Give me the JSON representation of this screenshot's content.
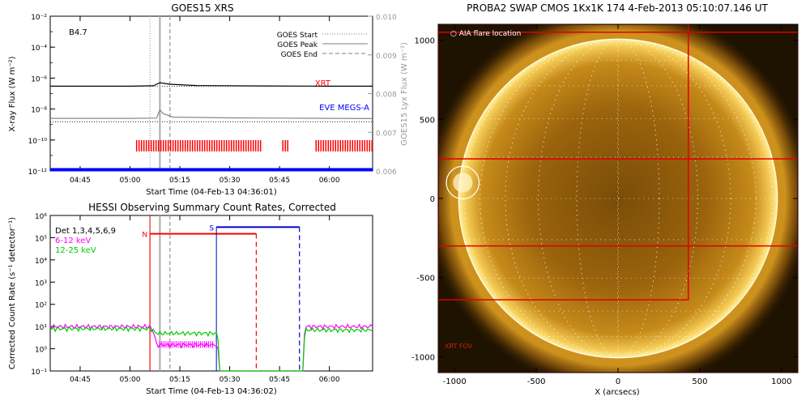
{
  "chart_data": [
    {
      "type": "line",
      "title": "GOES15 XRS",
      "xlabel": "Start Time (04-Feb-13 04:36:01)",
      "ylabel": "X-ray Flux (W m⁻²)",
      "ylabel_right": "GOES15 Lyx Flux (W m⁻²)",
      "y_scale": "log",
      "ylim": [
        1e-12,
        0.01
      ],
      "yticks": [
        "10⁻²",
        "10⁻⁴",
        "10⁻⁶",
        "10⁻⁸",
        "10⁻¹⁰",
        "10⁻¹²"
      ],
      "ylim_right": [
        0.006,
        0.01
      ],
      "yticks_right": [
        "0.010",
        "0.009",
        "0.008",
        "0.007",
        "0.006"
      ],
      "xlim": [
        "04:36",
        "06:13"
      ],
      "xticks": [
        "04:45",
        "05:00",
        "05:15",
        "05:30",
        "05:45",
        "06:00"
      ],
      "annotation": "B4.7",
      "legend": [
        {
          "name": "GOES Start",
          "style": "dotted",
          "color": "#aaaaaa"
        },
        {
          "name": "GOES Peak",
          "style": "solid",
          "color": "#aaaaaa"
        },
        {
          "name": "GOES End",
          "style": "dashed",
          "color": "#aaaaaa"
        }
      ],
      "labels": [
        {
          "text": "XRT",
          "color": "#ff0000"
        },
        {
          "text": "EVE MEGS-A",
          "color": "#0000ff"
        }
      ],
      "vlines": {
        "start": "05:06",
        "peak": "05:09",
        "end": "05:12"
      },
      "series": [
        {
          "color": "#000000",
          "x": [
            "04:36",
            "05:00",
            "05:07",
            "05:09",
            "05:12",
            "05:20",
            "05:40",
            "06:00",
            "06:13"
          ],
          "y": [
            3e-07,
            3e-07,
            3.2e-07,
            5e-07,
            4e-07,
            3.3e-07,
            3.1e-07,
            3e-07,
            3e-07
          ]
        },
        {
          "color": "#888888",
          "x": [
            "04:36",
            "05:00",
            "05:08",
            "05:09",
            "05:10",
            "05:13",
            "05:30",
            "05:45",
            "06:13"
          ],
          "y": [
            2.5e-09,
            2.5e-09,
            2.6e-09,
            9e-09,
            5e-09,
            3e-09,
            2.7e-09,
            2.6e-09,
            2.4e-09
          ]
        },
        {
          "color": "#0000ff",
          "x": [
            "04:36",
            "06:13"
          ],
          "y": [
            1.2e-12,
            1.2e-12
          ]
        }
      ],
      "xrt_coverage": [
        [
          "05:02",
          "05:40"
        ],
        [
          "05:46",
          "05:48"
        ],
        [
          "05:56",
          "06:13"
        ]
      ]
    },
    {
      "type": "line",
      "title": "HESSI Observing Summary Count Rates, Corrected",
      "xlabel": "Start Time (04-Feb-13 04:36:02)",
      "ylabel": "Corrected Count Rate (s⁻¹ detector⁻¹)",
      "y_scale": "log",
      "ylim": [
        0.1,
        1000000.0
      ],
      "yticks": [
        "10⁶",
        "10⁵",
        "10⁴",
        "10³",
        "10²",
        "10¹",
        "10⁰",
        "10⁻¹"
      ],
      "xlim": [
        "04:36",
        "06:13"
      ],
      "xticks": [
        "04:45",
        "05:00",
        "05:15",
        "05:30",
        "05:45",
        "06:00"
      ],
      "legend": [
        {
          "name": "Det 1,3,4,5,6,9",
          "color": "#000000"
        },
        {
          "name": "6-12 keV",
          "color": "#ff00ff"
        },
        {
          "name": "12-25 keV",
          "color": "#00cc00"
        }
      ],
      "vlines": {
        "start": "05:06",
        "peak": "05:09",
        "end": "05:12"
      },
      "flags": [
        {
          "label": "N",
          "color": "#ff0000",
          "from": "05:06",
          "to": "05:38",
          "level": 150000.0
        },
        {
          "label": "S",
          "color": "#0000cc",
          "from": "05:26",
          "to": "05:51",
          "level": 300000.0
        }
      ],
      "series": [
        {
          "name": "6-12 keV",
          "color": "#ff00ff",
          "x": [
            "04:36",
            "05:06",
            "05:08",
            "05:26",
            "05:27",
            "05:52",
            "05:53",
            "06:13"
          ],
          "y": [
            10,
            10,
            1.5,
            1.5,
            0.1,
            0.1,
            10,
            10
          ]
        },
        {
          "name": "12-25 keV",
          "color": "#00cc00",
          "x": [
            "04:36",
            "05:06",
            "05:08",
            "05:26",
            "05:27",
            "05:52",
            "05:53",
            "06:13"
          ],
          "y": [
            8,
            8,
            5,
            5,
            0.1,
            0.1,
            7,
            7
          ]
        }
      ]
    },
    {
      "type": "image",
      "title": "PROBA2 SWAP CMOS 1Kx1K 174   4-Feb-2013 05:10:07.146 UT",
      "xlabel": "X (arcsecs)",
      "xlim": [
        -1100,
        1100
      ],
      "ylim": [
        -1100,
        1100
      ],
      "xticks": [
        "-1000",
        "-500",
        "0",
        "500",
        "1000"
      ],
      "yticks": [
        "1000",
        "500",
        "0",
        "-500",
        "-1000"
      ],
      "annotation_top": "AIA flare location",
      "annotation_bottom": "XRT FOV",
      "flare_location": {
        "x": -950,
        "y": 100,
        "r": 100
      },
      "sun_radius": 975,
      "fov_boxes": [
        {
          "x0": -1100,
          "x1": 430,
          "y0": -640,
          "y1": 1100
        },
        {
          "x0": -1100,
          "x1": 1100,
          "y0": -1100,
          "y1": 1050
        },
        {
          "x0": -1100,
          "x1": 1100,
          "y0": -300,
          "y1": 250
        }
      ]
    }
  ]
}
